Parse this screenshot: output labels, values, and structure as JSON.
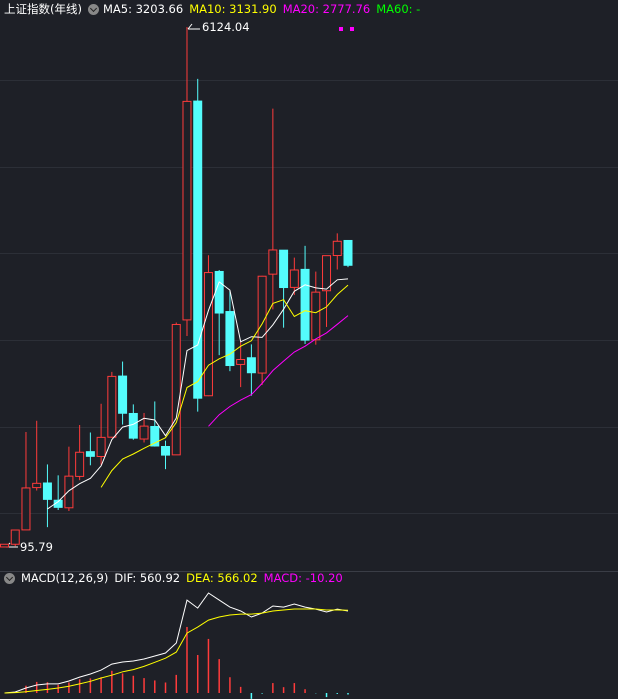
{
  "chart_data": [
    {
      "type": "candlestick",
      "title": "上证指数(年线)",
      "categories": [
        null,
        null,
        null,
        null,
        null,
        null,
        null,
        null,
        null,
        null,
        null,
        null,
        null,
        null,
        null,
        null,
        null,
        null,
        null,
        null,
        null,
        null,
        null,
        null,
        null,
        null,
        null,
        null,
        null,
        null,
        null,
        null,
        null
      ],
      "open": [
        96.05,
        127.61,
        293.74,
        784.13,
        837.7,
        637.72,
        550.26,
        914.06,
        1200.95,
        1144.89,
        1368.69,
        2077.07,
        1643.48,
        1347.43,
        1492.72,
        1260.78,
        1163.88,
        2728.19,
        5265.0,
        1849.02,
        3289.75,
        2825.33,
        2212.0,
        2289.51,
        2112.13,
        3258.63,
        3536.59,
        3105.31,
        3314.03,
        2497.88,
        3066.34,
        3474.68,
        3649.15
      ],
      "high": [
        127.61,
        292.75,
        1429.01,
        1558.95,
        1052.94,
        926.41,
        1258.69,
        1510.18,
        1422.98,
        1756.18,
        2125.72,
        2245.44,
        1748.89,
        1649.6,
        1783.01,
        1328.53,
        2698.9,
        6124.04,
        5522.78,
        3478.01,
        3306.75,
        3067.46,
        2478.38,
        2444.8,
        3239.36,
        5178.19,
        3538.69,
        3450.49,
        3587.03,
        3288.45,
        3474.92,
        3731.69,
        3651.89
      ],
      "low": [
        95.79,
        104.96,
        292.76,
        750.46,
        325.89,
        524.43,
        512.83,
        870.18,
        1043.02,
        1047.83,
        1361.21,
        1514.86,
        1339.2,
        1307.4,
        1259.43,
        998.23,
        1161.91,
        2541.52,
        1664.93,
        1844.09,
        2319.74,
        2134.02,
        1949.46,
        1849.65,
        1974.38,
        2850.71,
        2638.3,
        3016.53,
        2449.2,
        2440.91,
        2646.8,
        3312.72,
        3340
      ],
      "close": [
        127.61,
        292.75,
        780.39,
        833.8,
        647.87,
        555.29,
        917.02,
        1194.1,
        1146.7,
        1366.58,
        2073.48,
        1645.97,
        1357.65,
        1497.04,
        1266.5,
        1161.06,
        2675.47,
        5261.56,
        1820.81,
        3277.14,
        2808.08,
        2199.42,
        2269.13,
        2115.98,
        3234.68,
        3539.18,
        3103.64,
        3307.17,
        2493.9,
        3050.12,
        3473.07,
        3639.78,
        3361.43
      ],
      "up_color": "#ff3b3b",
      "down_color": "#54fcfc",
      "ylim": [
        -113,
        6205
      ],
      "annotations": [
        {
          "text": "6124.04"
        },
        {
          "text": "95.79"
        }
      ],
      "series": [
        {
          "name": "MA5",
          "legend_label": "MA5: 3203.66",
          "color": "#ffffff",
          "values": [
            null,
            null,
            null,
            null,
            536.48,
            622.02,
            746.87,
            829.62,
            892.2,
            1035.94,
            1339.58,
            1485.37,
            1518.08,
            1588.14,
            1568.13,
            1385.64,
            1591.54,
            2372.33,
            2437.08,
            2839.21,
            3168.61,
            3073.4,
            2474.92,
            2533.95,
            2525.46,
            2671.68,
            2852.52,
            3060.13,
            3135.71,
            3098.8,
            3085.58,
            3192.81,
            3203.66
          ]
        },
        {
          "name": "MA10",
          "legend_label": "MA10: 3131.90",
          "color": "#ffff00",
          "values": [
            null,
            null,
            null,
            null,
            null,
            null,
            null,
            null,
            null,
            786.21,
            980.8,
            1116.12,
            1173.85,
            1240.17,
            1302.03,
            1362.61,
            1538.46,
            1945.2,
            2012.61,
            2203.67,
            2277.13,
            2332.47,
            2423.62,
            2485.52,
            2682.33,
            2920.15,
            2962.96,
            2767.52,
            2834.83,
            2812.13,
            2878.63,
            3022.67,
            3131.9
          ]
        },
        {
          "name": "MA20",
          "legend_label": "MA20: 2777.76",
          "color": "#ff00ff",
          "values": [
            null,
            null,
            null,
            null,
            null,
            null,
            null,
            null,
            null,
            null,
            null,
            null,
            null,
            null,
            null,
            null,
            null,
            null,
            null,
            1494.94,
            1628.96,
            1724.3,
            1798.73,
            1862.84,
            1992.18,
            2141.38,
            2250.71,
            2356.36,
            2423.72,
            2507.9,
            2577.88,
            2677.57,
            2777.76
          ]
        },
        {
          "name": "MA60",
          "legend_label": "MA60: -",
          "color": "#00ff00",
          "values": [
            null,
            null,
            null,
            null,
            null,
            null,
            null,
            null,
            null,
            null,
            null,
            null,
            null,
            null,
            null,
            null,
            null,
            null,
            null,
            null,
            null,
            null,
            null,
            null,
            null,
            null,
            null,
            null,
            null,
            null,
            null,
            null,
            null
          ]
        }
      ]
    },
    {
      "type": "macd",
      "title": "MACD(12,26,9)",
      "ylim": [
        -41,
        739
      ],
      "series": [
        {
          "name": "DIF",
          "legend_label": "DIF: 560.92",
          "color": "#ffffff",
          "values": [
            0,
            7,
            34,
            55,
            62,
            62,
            82,
            109,
            130,
            157,
            198,
            212,
            219,
            233,
            253,
            274,
            342,
            636,
            581,
            684,
            636,
            588,
            561,
            520,
            547,
            595,
            588,
            609,
            588,
            574,
            554,
            574,
            560.92
          ]
        },
        {
          "name": "DEA",
          "legend_label": "DEA: 566.02",
          "color": "#ffff00",
          "values": [
            0,
            3,
            9,
            17,
            25,
            34,
            46,
            62,
            80,
            103,
            122,
            145,
            160,
            182,
            210,
            238,
            280,
            410,
            451,
            499,
            520,
            534,
            540,
            540,
            547,
            561,
            568,
            575,
            575,
            575,
            568,
            568,
            566.02
          ]
        },
        {
          "name": "MACD",
          "legend_label": "MACD: -10.20",
          "color": "#ff00ff",
          "bar": true,
          "values": [
            0,
            8,
            50,
            76,
            74,
            56,
            72,
            94,
            100,
            108,
            152,
            134,
            118,
            102,
            86,
            72,
            124,
            452,
            260,
            370,
            232,
            108,
            42,
            -40,
            -4,
            68,
            40,
            68,
            26,
            -2,
            -28,
            -6,
            -10.2
          ]
        }
      ]
    }
  ]
}
